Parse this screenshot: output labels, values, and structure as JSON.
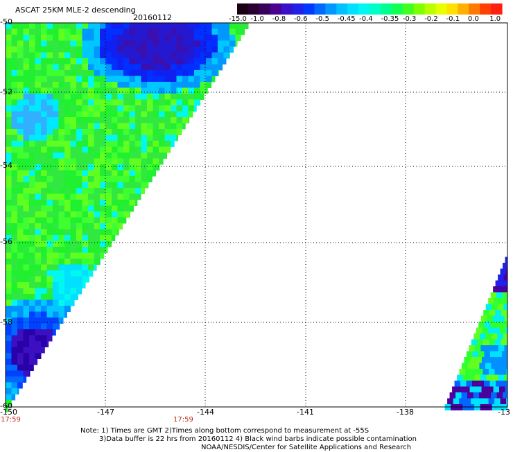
{
  "header": {
    "title": "ASCAT 25KM MLE-2 descending",
    "date": "20160112"
  },
  "colorbar": {
    "labels": [
      "-15.0",
      "-1.0",
      "-0.8",
      "-0.6",
      "-0.5",
      "-0.45",
      "-0.4",
      "-0.35",
      "-0.3",
      "-0.2",
      "-0.1",
      "0.0",
      "1.0"
    ],
    "colors": [
      "#2a0033",
      "#4b00a0",
      "#2a1ad8",
      "#0040ff",
      "#0090ff",
      "#00c8ff",
      "#00f0f0",
      "#00ffb0",
      "#30ff30",
      "#b0ff00",
      "#ffee00",
      "#ff8000",
      "#ff2020"
    ]
  },
  "axes": {
    "lat_labels": [
      "-50",
      "-52",
      "-54",
      "-56",
      "-58",
      "-60"
    ],
    "lon_labels": [
      "-150",
      "-147",
      "-144",
      "-141",
      "-138",
      "-13"
    ]
  },
  "times": {
    "left": "17:59",
    "mid": "17:59"
  },
  "notes": {
    "line1": "Note: 1) Times are GMT 2)Times along bottom correspond to measurement at -55S",
    "line2": "3)Data buffer is 22 hrs from 20160112 4) Black wind barbs indicate possible contamination",
    "line3": "NOAA/NESDIS/Center for Satellite Applications and Research"
  }
}
